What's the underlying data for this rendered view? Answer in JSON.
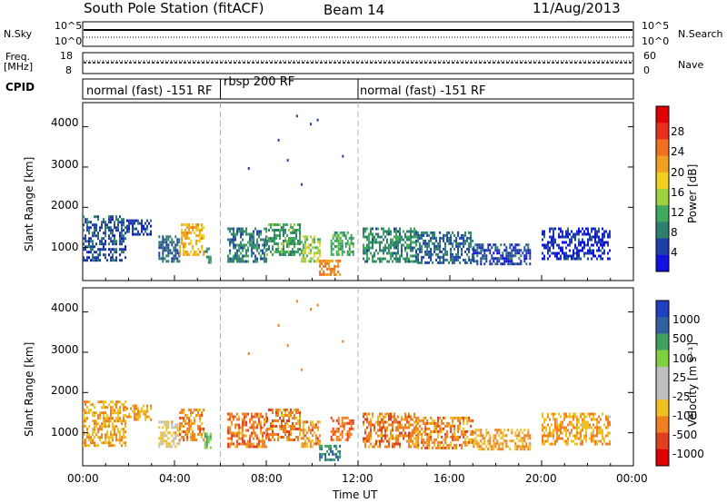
{
  "header": {
    "station": "South Pole Station (fitACF)",
    "beam": "Beam 14",
    "date": "11/Aug/2013"
  },
  "top_panels": {
    "nsky_label": "N.Sky",
    "nsky_ticks": [
      "10^5",
      "10^0"
    ],
    "nsearch_label": "N.Search",
    "nsearch_ticks": [
      "10^5",
      "10^0"
    ],
    "freq_label": "Freq.",
    "freq_unit": "[MHz]",
    "freq_ticks": [
      "18",
      "8"
    ],
    "nave_label": "Nave",
    "nave_ticks": [
      "60",
      "0"
    ],
    "cpid_label": "CPID"
  },
  "cpid_segments": [
    {
      "label": "normal (fast) -151 RF",
      "start_h": 0,
      "end_h": 6
    },
    {
      "label": "rbsp 200 RF",
      "start_h": 6,
      "end_h": 12
    },
    {
      "label": "normal (fast) -151 RF",
      "start_h": 12,
      "end_h": 24
    }
  ],
  "colors": {
    "power_scale": [
      "#1010e0",
      "#1f3fa8",
      "#2f7f6f",
      "#3faa5f",
      "#9fd040",
      "#f0d020",
      "#f0a020",
      "#f07020",
      "#e83020",
      "#e00000"
    ],
    "velocity_scale": [
      "#2040c0",
      "#3060a0",
      "#40a060",
      "#80d040",
      "#c0c0c0",
      "#c0c0c0",
      "#f0c020",
      "#f08020",
      "#e04020",
      "#e00000"
    ],
    "mode_divider": "#b0b0b0"
  },
  "chart_data": [
    {
      "type": "heatmap",
      "panel": "power",
      "xlabel": "",
      "ylabel": "Slant Range [km]",
      "xlim_hours": [
        0,
        24
      ],
      "ylim": [
        180,
        4600
      ],
      "yticks": [
        1000,
        2000,
        3000,
        4000
      ],
      "xtick_labels": [
        "00:00",
        "04:00",
        "08:00",
        "12:00",
        "16:00",
        "20:00",
        "00:00"
      ],
      "colorbar": {
        "label": "Power [dB]",
        "ticks": [
          "4",
          "8",
          "12",
          "16",
          "20",
          "24",
          "28"
        ],
        "range": [
          0,
          30
        ]
      },
      "echo_regions": [
        {
          "t": [
            0.0,
            1.9
          ],
          "r": [
            650,
            1800
          ],
          "level": 0.18
        },
        {
          "t": [
            1.9,
            3.0
          ],
          "r": [
            1300,
            1700
          ],
          "level": 0.15
        },
        {
          "t": [
            3.3,
            4.2
          ],
          "r": [
            650,
            1300
          ],
          "level": 0.2
        },
        {
          "t": [
            4.2,
            5.3
          ],
          "r": [
            800,
            1600
          ],
          "level": 0.62
        },
        {
          "t": [
            5.3,
            5.6
          ],
          "r": [
            600,
            1000
          ],
          "level": 0.3
        },
        {
          "t": [
            6.3,
            8.0
          ],
          "r": [
            650,
            1500
          ],
          "level": 0.25
        },
        {
          "t": [
            8.0,
            9.5
          ],
          "r": [
            800,
            1600
          ],
          "level": 0.33
        },
        {
          "t": [
            9.5,
            10.3
          ],
          "r": [
            650,
            1300
          ],
          "level": 0.45
        },
        {
          "t": [
            10.3,
            11.2
          ],
          "r": [
            300,
            700
          ],
          "level": 0.72
        },
        {
          "t": [
            10.8,
            11.8
          ],
          "r": [
            800,
            1400
          ],
          "level": 0.35
        },
        {
          "t": [
            12.2,
            14.5
          ],
          "r": [
            650,
            1500
          ],
          "level": 0.28
        },
        {
          "t": [
            14.5,
            17.0
          ],
          "r": [
            650,
            1400
          ],
          "level": 0.2
        },
        {
          "t": [
            17.0,
            19.5
          ],
          "r": [
            600,
            1100
          ],
          "level": 0.15
        },
        {
          "t": [
            20.0,
            23.0
          ],
          "r": [
            700,
            1500
          ],
          "level": 0.12
        }
      ],
      "sparse_echoes": [
        {
          "t": 9.3,
          "r": 4300,
          "level": 0.15
        },
        {
          "t": 9.9,
          "r": 4100,
          "level": 0.15
        },
        {
          "t": 10.2,
          "r": 4200,
          "level": 0.15
        },
        {
          "t": 8.5,
          "r": 3700,
          "level": 0.15
        },
        {
          "t": 9.5,
          "r": 2600,
          "level": 0.15
        },
        {
          "t": 8.9,
          "r": 3200,
          "level": 0.15
        },
        {
          "t": 7.2,
          "r": 3000,
          "level": 0.15
        },
        {
          "t": 11.3,
          "r": 3300,
          "level": 0.15
        }
      ]
    },
    {
      "type": "heatmap",
      "panel": "velocity",
      "xlabel": "Time UT",
      "ylabel": "Slant Range [km]",
      "xlim_hours": [
        0,
        24
      ],
      "ylim": [
        180,
        4600
      ],
      "yticks": [
        1000,
        2000,
        3000,
        4000
      ],
      "xtick_labels": [
        "00:00",
        "04:00",
        "08:00",
        "12:00",
        "16:00",
        "20:00",
        "00:00"
      ],
      "colorbar": {
        "label": "Velocity [m s⁻¹]",
        "ticks": [
          "1000",
          "500",
          "100",
          "25",
          "-25",
          "-100",
          "-500",
          "-1000"
        ],
        "range": [
          -1000,
          1000
        ]
      },
      "echo_regions": [
        {
          "t": [
            0.0,
            1.9
          ],
          "r": [
            650,
            1800
          ],
          "level": 0.7
        },
        {
          "t": [
            1.9,
            3.0
          ],
          "r": [
            1300,
            1700
          ],
          "level": 0.72
        },
        {
          "t": [
            3.3,
            4.2
          ],
          "r": [
            650,
            1300
          ],
          "level": 0.62
        },
        {
          "t": [
            4.2,
            5.3
          ],
          "r": [
            800,
            1600
          ],
          "level": 0.74
        },
        {
          "t": [
            5.3,
            5.6
          ],
          "r": [
            600,
            1000
          ],
          "level": 0.3
        },
        {
          "t": [
            6.3,
            8.0
          ],
          "r": [
            650,
            1500
          ],
          "level": 0.76
        },
        {
          "t": [
            8.0,
            9.5
          ],
          "r": [
            800,
            1600
          ],
          "level": 0.76
        },
        {
          "t": [
            9.5,
            10.3
          ],
          "r": [
            650,
            1300
          ],
          "level": 0.72
        },
        {
          "t": [
            10.3,
            11.2
          ],
          "r": [
            300,
            700
          ],
          "level": 0.2
        },
        {
          "t": [
            10.8,
            11.8
          ],
          "r": [
            800,
            1400
          ],
          "level": 0.78
        },
        {
          "t": [
            12.2,
            14.5
          ],
          "r": [
            650,
            1500
          ],
          "level": 0.76
        },
        {
          "t": [
            14.5,
            17.0
          ],
          "r": [
            650,
            1400
          ],
          "level": 0.74
        },
        {
          "t": [
            17.0,
            19.5
          ],
          "r": [
            600,
            1100
          ],
          "level": 0.7
        },
        {
          "t": [
            20.0,
            23.0
          ],
          "r": [
            700,
            1500
          ],
          "level": 0.68
        }
      ],
      "sparse_echoes": [
        {
          "t": 9.3,
          "r": 4300,
          "level": 0.75
        },
        {
          "t": 9.9,
          "r": 4100,
          "level": 0.75
        },
        {
          "t": 10.2,
          "r": 4200,
          "level": 0.75
        },
        {
          "t": 8.5,
          "r": 3700,
          "level": 0.75
        },
        {
          "t": 9.5,
          "r": 2600,
          "level": 0.75
        },
        {
          "t": 8.9,
          "r": 3200,
          "level": 0.75
        },
        {
          "t": 7.2,
          "r": 3000,
          "level": 0.75
        },
        {
          "t": 11.3,
          "r": 3300,
          "level": 0.75
        }
      ]
    }
  ]
}
